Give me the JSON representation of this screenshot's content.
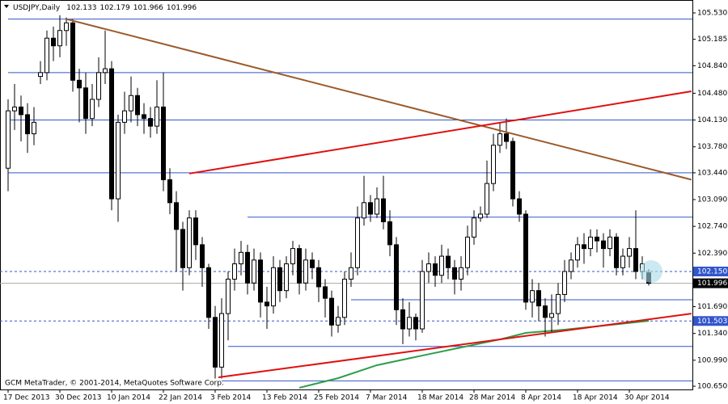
{
  "chart_data": {
    "type": "candlestick",
    "title": "USDJPY,Daily",
    "footer": "GCM MetaTrader, © 2001-2014, MetaQuotes Software Corp.",
    "categories": [
      "17 Dec 2013",
      null,
      null,
      null,
      null,
      null,
      null,
      null,
      "30 Dec 2013",
      null,
      null,
      null,
      null,
      null,
      null,
      null,
      "10 Jan 2014",
      null,
      null,
      null,
      null,
      null,
      null,
      null,
      "22 Jan 2014",
      null,
      null,
      null,
      null,
      null,
      null,
      null,
      "3 Feb 2014",
      null,
      null,
      null,
      null,
      null,
      null,
      null,
      "13 Feb 2014",
      null,
      null,
      null,
      null,
      null,
      null,
      null,
      "25 Feb 2014",
      null,
      null,
      null,
      null,
      null,
      null,
      null,
      "7 Mar 2014",
      null,
      null,
      null,
      null,
      null,
      null,
      null,
      "18 Mar 2014",
      null,
      null,
      null,
      null,
      null,
      null,
      null,
      "28 Mar 2014",
      null,
      null,
      null,
      null,
      null,
      null,
      null,
      "8 Apr 2014",
      null,
      null,
      null,
      null,
      null,
      null,
      null,
      "18 Apr 2014",
      null,
      null,
      null,
      null,
      null,
      null,
      null,
      "30 Apr 2014",
      null,
      null,
      null
    ],
    "open": [
      103.5,
      104.25,
      104.3,
      104.2,
      103.95,
      104.7,
      104.75,
      105.2,
      105.1,
      105.3,
      105.4,
      104.65,
      104.55,
      104.15,
      104.4,
      104.75,
      104.8,
      103.1,
      104.1,
      104.25,
      104.45,
      104.2,
      104.15,
      104.05,
      104.3,
      103.35,
      103.05,
      102.7,
      102.2,
      102.85,
      102.5,
      102.2,
      101.55,
      100.9,
      101.6,
      102.05,
      102.25,
      102.4,
      102.0,
      102.3,
      101.75,
      101.7,
      102.2,
      101.9,
      102.25,
      102.45,
      102.0,
      102.3,
      102.2,
      101.95,
      101.8,
      101.45,
      101.55,
      102.05,
      102.2,
      102.85,
      103.05,
      102.9,
      103.1,
      102.8,
      102.5,
      101.65,
      101.4,
      101.55,
      101.4,
      102.15,
      102.25,
      102.1,
      102.35,
      102.2,
      102.05,
      102.2,
      102.6,
      102.85,
      102.9,
      103.3,
      103.8,
      103.95,
      103.85,
      103.1,
      102.9,
      101.75,
      101.9,
      101.7,
      101.55,
      101.6,
      101.85,
      102.15,
      102.3,
      102.5,
      102.45,
      102.6,
      102.55,
      102.45,
      102.6,
      102.2,
      102.35,
      102.45,
      102.15,
      102.133
    ],
    "high": [
      104.4,
      104.6,
      104.45,
      104.35,
      104.3,
      104.9,
      105.3,
      105.35,
      105.5,
      105.47,
      105.45,
      104.8,
      104.75,
      104.6,
      104.95,
      105.3,
      104.9,
      104.2,
      104.5,
      104.7,
      104.55,
      104.35,
      104.3,
      104.65,
      104.75,
      103.5,
      103.2,
      102.8,
      102.95,
      102.95,
      102.6,
      102.25,
      101.7,
      101.8,
      102.15,
      102.45,
      102.55,
      102.5,
      102.45,
      102.4,
      101.95,
      102.35,
      102.3,
      102.35,
      102.55,
      102.5,
      102.45,
      102.4,
      102.3,
      102.05,
      101.9,
      101.7,
      102.15,
      102.4,
      103.0,
      103.4,
      103.15,
      103.25,
      103.4,
      102.95,
      102.6,
      101.8,
      101.75,
      101.6,
      102.3,
      102.4,
      102.35,
      102.5,
      102.45,
      102.3,
      102.35,
      102.75,
      102.95,
      103.0,
      103.6,
      103.95,
      104.1,
      104.15,
      103.9,
      103.2,
      102.95,
      102.05,
      102.0,
      101.8,
      101.85,
      102.0,
      102.3,
      102.4,
      102.6,
      102.65,
      102.7,
      102.7,
      102.65,
      102.7,
      102.65,
      102.45,
      102.6,
      102.95,
      102.35,
      102.179
    ],
    "low": [
      103.2,
      104.0,
      103.85,
      103.7,
      103.8,
      104.6,
      104.65,
      104.9,
      104.95,
      105.1,
      104.5,
      104.1,
      103.95,
      104.05,
      104.3,
      104.6,
      102.95,
      102.8,
      103.95,
      104.1,
      104.05,
      103.95,
      103.9,
      103.95,
      103.2,
      102.9,
      102.15,
      101.9,
      102.1,
      102.3,
      101.95,
      101.4,
      100.75,
      100.75,
      101.25,
      101.9,
      102.1,
      101.85,
      101.9,
      101.55,
      101.4,
      101.6,
      101.75,
      101.8,
      102.1,
      101.85,
      101.9,
      102.05,
      101.75,
      101.55,
      101.3,
      101.35,
      101.45,
      101.95,
      102.1,
      102.75,
      102.8,
      102.85,
      102.7,
      102.35,
      101.45,
      101.2,
      101.3,
      101.25,
      101.35,
      102.0,
      101.95,
      102.0,
      102.05,
      101.85,
      101.9,
      102.1,
      102.5,
      102.8,
      102.85,
      103.2,
      103.7,
      103.75,
      103.0,
      102.8,
      101.65,
      101.55,
      101.5,
      101.3,
      101.35,
      101.45,
      101.75,
      102.05,
      102.2,
      102.25,
      102.35,
      102.4,
      102.2,
      102.35,
      102.1,
      102.1,
      102.2,
      102.05,
      102.05,
      101.966
    ],
    "close": [
      104.25,
      104.3,
      104.2,
      103.95,
      104.1,
      104.75,
      105.2,
      105.1,
      105.3,
      105.4,
      104.65,
      104.55,
      104.15,
      104.4,
      104.75,
      104.8,
      103.1,
      104.1,
      104.25,
      104.45,
      104.2,
      104.15,
      104.05,
      104.3,
      103.35,
      103.05,
      102.7,
      102.2,
      102.85,
      102.5,
      102.2,
      101.55,
      100.9,
      101.6,
      102.05,
      102.25,
      102.4,
      102.0,
      102.3,
      101.75,
      101.7,
      102.2,
      101.9,
      102.25,
      102.45,
      102.0,
      102.3,
      102.2,
      101.95,
      101.8,
      101.45,
      101.55,
      102.05,
      102.2,
      102.85,
      103.05,
      102.9,
      103.1,
      102.8,
      102.5,
      101.65,
      101.4,
      101.55,
      101.4,
      102.15,
      102.25,
      102.1,
      102.35,
      102.2,
      102.05,
      102.2,
      102.6,
      102.85,
      102.9,
      103.3,
      103.8,
      103.95,
      103.85,
      103.1,
      102.9,
      101.75,
      101.9,
      101.7,
      101.55,
      101.6,
      101.85,
      102.15,
      102.3,
      102.5,
      102.45,
      102.6,
      102.55,
      102.45,
      102.6,
      102.2,
      102.35,
      102.45,
      102.15,
      102.25,
      101.996
    ],
    "ylim": [
      100.608,
      105.699
    ],
    "yticks": [
      {
        "value": 105.53,
        "label": "105.530"
      },
      {
        "value": 105.185,
        "label": "105.185"
      },
      {
        "value": 104.84,
        "label": "104.840"
      },
      {
        "value": 104.48,
        "label": "104.480"
      },
      {
        "value": 104.13,
        "label": "104.130"
      },
      {
        "value": 103.78,
        "label": "103.780"
      },
      {
        "value": 103.44,
        "label": "103.440"
      },
      {
        "value": 103.09,
        "label": "103.090"
      },
      {
        "value": 102.74,
        "label": "102.740"
      },
      {
        "value": 102.39,
        "label": "102.390"
      },
      {
        "value": 101.69,
        "label": "101.690"
      },
      {
        "value": 101.34,
        "label": "101.340"
      },
      {
        "value": 100.99,
        "label": "100.990"
      },
      {
        "value": 100.65,
        "label": "100.650"
      }
    ],
    "price_labels": [
      {
        "value": 102.15,
        "label": "102.150",
        "color": "#3355cc"
      },
      {
        "value": 101.996,
        "label": "101.996",
        "color": "#000000"
      },
      {
        "value": 101.503,
        "label": "101.503",
        "color": "#3355cc"
      }
    ],
    "levels": [
      {
        "value": 105.45,
        "start": 0
      },
      {
        "value": 104.75,
        "start": 0
      },
      {
        "value": 104.13,
        "start": 0
      },
      {
        "value": 103.44,
        "start": 0
      },
      {
        "value": 102.86,
        "start": 37
      },
      {
        "value": 101.78,
        "start": 53
      },
      {
        "value": 101.17,
        "start": 34
      },
      {
        "value": 100.72,
        "start": 33
      }
    ],
    "dashed_levels": [
      102.15,
      101.503
    ],
    "level_color": "#3355cc",
    "trendlines": [
      {
        "color": "#9b5a2a",
        "from": [
          9,
          105.45
        ],
        "to": [
          105.6,
          103.35
        ]
      },
      {
        "color": "#e01010",
        "from": [
          28,
          103.43
        ],
        "to": [
          105.6,
          104.505
        ]
      },
      {
        "color": "#e01010",
        "from": [
          32.5,
          100.766
        ],
        "to": [
          105.6,
          101.6
        ]
      }
    ],
    "moving_average": {
      "color": "#2e9e4a",
      "x": [
        45,
        51,
        57,
        64,
        70,
        76,
        80,
        86,
        92,
        99
      ],
      "values": [
        100.63,
        100.756,
        100.925,
        101.051,
        101.157,
        101.262,
        101.347,
        101.39,
        101.442,
        101.505
      ]
    }
  }
}
